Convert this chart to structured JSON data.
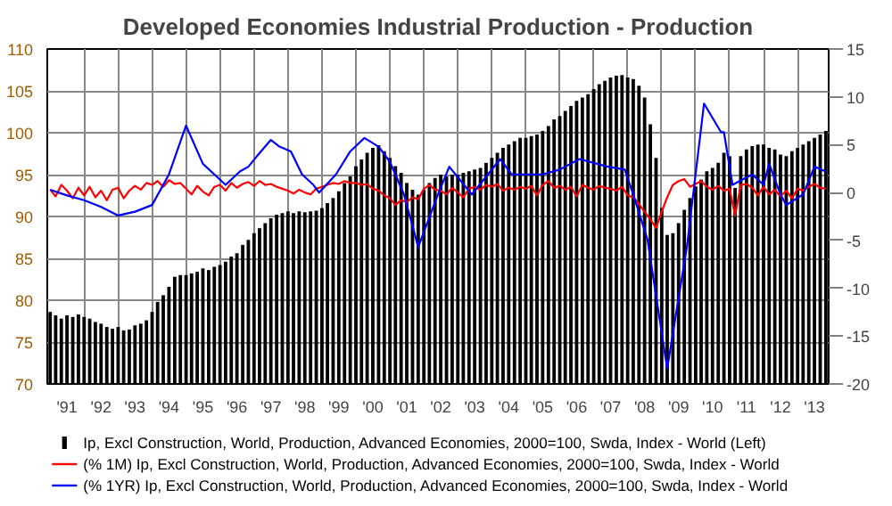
{
  "chart_data": {
    "type": "bar",
    "title": "Developed Economies Industrial Production - Production",
    "x": [
      "1991-01",
      "1991-03",
      "1991-05",
      "1991-07",
      "1991-09",
      "1991-11",
      "1992-01",
      "1992-03",
      "1992-05",
      "1992-07",
      "1992-09",
      "1992-11",
      "1993-01",
      "1993-03",
      "1993-05",
      "1993-07",
      "1993-09",
      "1993-11",
      "1994-01",
      "1994-03",
      "1994-05",
      "1994-07",
      "1994-09",
      "1994-11",
      "1995-01",
      "1995-03",
      "1995-05",
      "1995-07",
      "1995-09",
      "1995-11",
      "1996-01",
      "1996-03",
      "1996-05",
      "1996-07",
      "1996-09",
      "1996-11",
      "1997-01",
      "1997-03",
      "1997-05",
      "1997-07",
      "1997-09",
      "1997-11",
      "1998-01",
      "1998-03",
      "1998-05",
      "1998-07",
      "1998-09",
      "1998-11",
      "1999-01",
      "1999-03",
      "1999-05",
      "1999-07",
      "1999-09",
      "1999-11",
      "2000-01",
      "2000-03",
      "2000-05",
      "2000-07",
      "2000-09",
      "2000-11",
      "2001-01",
      "2001-03",
      "2001-05",
      "2001-07",
      "2001-09",
      "2001-11",
      "2002-01",
      "2002-03",
      "2002-05",
      "2002-07",
      "2002-09",
      "2002-11",
      "2003-01",
      "2003-03",
      "2003-05",
      "2003-07",
      "2003-09",
      "2003-11",
      "2004-01",
      "2004-03",
      "2004-05",
      "2004-07",
      "2004-09",
      "2004-11",
      "2005-01",
      "2005-03",
      "2005-05",
      "2005-07",
      "2005-09",
      "2005-11",
      "2006-01",
      "2006-03",
      "2006-05",
      "2006-07",
      "2006-09",
      "2006-11",
      "2007-01",
      "2007-03",
      "2007-05",
      "2007-07",
      "2007-09",
      "2007-11",
      "2008-01",
      "2008-03",
      "2008-05",
      "2008-07",
      "2008-09",
      "2008-11",
      "2009-01",
      "2009-03",
      "2009-05",
      "2009-07",
      "2009-09",
      "2009-11",
      "2010-01",
      "2010-03",
      "2010-05",
      "2010-07",
      "2010-09",
      "2010-11",
      "2011-01",
      "2011-03",
      "2011-05",
      "2011-07",
      "2011-09",
      "2011-11",
      "2012-01",
      "2012-03",
      "2012-05",
      "2012-07",
      "2012-09",
      "2012-11",
      "2013-01",
      "2013-03",
      "2013-05",
      "2013-07",
      "2013-09",
      "2013-11"
    ],
    "series": [
      {
        "name": "Ip, Excl Construction, World, Production, Advanced Economies, 2000=100, Swda, Index - World  (Left)",
        "color": "#000000",
        "values": [
          78.6,
          78.2,
          77.8,
          78.2,
          78.0,
          78.3,
          78.0,
          77.8,
          77.4,
          77.2,
          76.8,
          76.6,
          76.8,
          76.4,
          76.5,
          77.0,
          77.2,
          77.6,
          78.6,
          79.8,
          80.6,
          81.6,
          82.8,
          83.0,
          83.0,
          83.2,
          83.4,
          83.8,
          83.6,
          84.0,
          84.2,
          84.6,
          85.2,
          85.6,
          86.6,
          87.2,
          88.0,
          88.6,
          89.2,
          89.8,
          90.2,
          90.4,
          90.6,
          90.4,
          90.6,
          90.5,
          90.6,
          90.7,
          91.0,
          91.6,
          92.2,
          93.0,
          94.0,
          94.8,
          96.0,
          96.8,
          97.6,
          98.2,
          98.5,
          97.8,
          97.0,
          96.0,
          95.2,
          94.0,
          93.2,
          92.6,
          93.2,
          94.0,
          94.6,
          95.0,
          94.8,
          95.0,
          95.0,
          95.2,
          95.4,
          95.6,
          95.8,
          96.4,
          97.0,
          97.6,
          98.2,
          98.6,
          99.0,
          99.4,
          99.4,
          99.6,
          99.8,
          100.2,
          100.8,
          101.6,
          102.0,
          102.6,
          103.2,
          103.8,
          104.2,
          104.6,
          105.2,
          105.8,
          106.2,
          106.6,
          106.8,
          106.9,
          106.6,
          106.4,
          105.6,
          104.2,
          101.0,
          97.0,
          91.0,
          87.8,
          88.0,
          89.2,
          90.8,
          92.2,
          93.6,
          94.4,
          95.4,
          95.8,
          96.4,
          97.6,
          97.2,
          93.4,
          97.2,
          98.0,
          98.4,
          98.6,
          98.6,
          98.2,
          98.0,
          97.4,
          97.2,
          97.8,
          98.2,
          98.6,
          99.0,
          99.4,
          99.8,
          100.2
        ]
      },
      {
        "name": "(% 1M) Ip, Excl Construction, World, Production, Advanced Economies, 2000=100, Swda, Index - World",
        "type": "line",
        "axis": "y2",
        "color": "#ff0000",
        "values": [
          0.3,
          -0.4,
          0.8,
          0.2,
          -0.6,
          0.5,
          -0.3,
          0.6,
          -0.5,
          0.2,
          -0.8,
          0.3,
          0.5,
          -0.6,
          0.2,
          0.7,
          0.3,
          1.0,
          0.8,
          1.2,
          0.6,
          1.3,
          0.9,
          1.0,
          0.4,
          -0.2,
          0.7,
          0.1,
          -0.3,
          0.6,
          0.8,
          0.2,
          1.0,
          0.5,
          0.9,
          1.1,
          0.7,
          1.2,
          0.8,
          0.9,
          0.6,
          0.4,
          0.2,
          -0.1,
          0.3,
          0.0,
          -0.2,
          0.4,
          0.6,
          0.8,
          1.0,
          0.9,
          1.2,
          1.0,
          1.0,
          0.8,
          0.9,
          0.4,
          0.2,
          -0.3,
          -0.6,
          -1.3,
          -0.8,
          -1.0,
          -0.5,
          -0.7,
          0.4,
          0.8,
          0.3,
          0.2,
          -0.2,
          0.5,
          0.0,
          -0.5,
          0.4,
          0.6,
          0.3,
          0.8,
          0.6,
          0.9,
          0.2,
          0.5,
          0.3,
          0.6,
          0.4,
          0.7,
          -0.3,
          0.8,
          1.2,
          0.5,
          0.7,
          0.3,
          0.6,
          -0.4,
          0.8,
          0.5,
          0.3,
          0.7,
          0.5,
          0.4,
          0.2,
          0.6,
          -0.3,
          -0.5,
          -1.2,
          -2.0,
          -2.8,
          -3.7,
          -2.0,
          -0.5,
          0.8,
          1.2,
          1.4,
          0.6,
          0.9,
          1.2,
          0.6,
          0.3,
          0.7,
          0.2,
          0.4,
          -2.4,
          0.8,
          0.9,
          0.5,
          -0.3,
          0.6,
          -0.2,
          0.3,
          -0.4,
          0.2,
          -0.6,
          0.4,
          0.2,
          0.6,
          0.9,
          0.5,
          0.4
        ]
      },
      {
        "name": "(% 1YR) Ip, Excl Construction, World, Production, Advanced Economies, 2000=100, Swda, Index - World",
        "type": "line",
        "axis": "y2",
        "color": "#0000ff",
        "x": [
          "1991-01",
          "1991-07",
          "1992-01",
          "1992-07",
          "1993-01",
          "1993-07",
          "1994-01",
          "1994-07",
          "1995-01",
          "1995-07",
          "1995-11",
          "1996-03",
          "1996-08",
          "1996-11",
          "1997-02",
          "1997-07",
          "1997-10",
          "1998-02",
          "1998-06",
          "1998-10",
          "1998-12",
          "1999-06",
          "1999-11",
          "2000-04",
          "2000-09",
          "2001-01",
          "2001-06",
          "2001-11",
          "2002-06",
          "2002-10",
          "2003-06",
          "2004-04",
          "2004-08",
          "2005-07",
          "2006-01",
          "2006-08",
          "2007-06",
          "2007-12",
          "2008-03",
          "2008-08",
          "2009-03",
          "2009-10",
          "2010-04",
          "2010-10",
          "2010-11",
          "2011-02",
          "2011-09",
          "2012-01",
          "2012-03",
          "2012-07",
          "2012-09",
          "2013-03",
          "2013-07",
          "2013-11"
        ],
        "values": [
          0.3,
          -0.3,
          -0.8,
          -1.5,
          -2.4,
          -2.0,
          -1.3,
          1.9,
          7.0,
          3.0,
          1.9,
          0.8,
          2.2,
          2.7,
          3.8,
          5.5,
          4.8,
          4.3,
          1.9,
          0.8,
          0.0,
          1.9,
          4.3,
          5.7,
          4.8,
          3.2,
          -0.2,
          -5.7,
          -0.2,
          2.7,
          -0.2,
          3.5,
          1.9,
          1.9,
          2.4,
          3.5,
          2.7,
          2.4,
          -0.2,
          -4.9,
          -18.4,
          -5.5,
          9.3,
          6.3,
          6.3,
          0.8,
          1.9,
          0.8,
          3.0,
          -0.2,
          -1.3,
          -0.2,
          2.7,
          2.2
        ]
      }
    ],
    "xlim": [
      "1990-12",
      "2013-12"
    ],
    "ylim": [
      70,
      110
    ],
    "y2lim": [
      -20,
      15
    ],
    "xticks": [
      {
        "value": "1991-07",
        "label": "'91"
      },
      {
        "value": "1992-01",
        "label": null
      },
      {
        "value": "1992-07",
        "label": "'92"
      },
      {
        "value": "1993-01",
        "label": null
      },
      {
        "value": "1993-07",
        "label": "'93"
      },
      {
        "value": "1994-01",
        "label": null
      },
      {
        "value": "1994-07",
        "label": "'94"
      },
      {
        "value": "1995-01",
        "label": null
      },
      {
        "value": "1995-07",
        "label": "'95"
      },
      {
        "value": "1996-01",
        "label": null
      },
      {
        "value": "1996-07",
        "label": "'96"
      },
      {
        "value": "1997-01",
        "label": null
      },
      {
        "value": "1997-07",
        "label": "'97"
      },
      {
        "value": "1998-01",
        "label": null
      },
      {
        "value": "1998-07",
        "label": "'98"
      },
      {
        "value": "1999-01",
        "label": null
      },
      {
        "value": "1999-07",
        "label": "'99"
      },
      {
        "value": "2000-01",
        "label": null
      },
      {
        "value": "2000-07",
        "label": "'00"
      },
      {
        "value": "2001-01",
        "label": null
      },
      {
        "value": "2001-07",
        "label": "'01"
      },
      {
        "value": "2002-01",
        "label": null
      },
      {
        "value": "2002-07",
        "label": "'02"
      },
      {
        "value": "2003-01",
        "label": null
      },
      {
        "value": "2003-07",
        "label": "'03"
      },
      {
        "value": "2004-01",
        "label": null
      },
      {
        "value": "2004-07",
        "label": "'04"
      },
      {
        "value": "2005-01",
        "label": null
      },
      {
        "value": "2005-07",
        "label": "'05"
      },
      {
        "value": "2006-01",
        "label": null
      },
      {
        "value": "2006-07",
        "label": "'06"
      },
      {
        "value": "2007-01",
        "label": null
      },
      {
        "value": "2007-07",
        "label": "'07"
      },
      {
        "value": "2008-01",
        "label": null
      },
      {
        "value": "2008-07",
        "label": "'08"
      },
      {
        "value": "2009-01",
        "label": null
      },
      {
        "value": "2009-07",
        "label": "'09"
      },
      {
        "value": "2010-01",
        "label": null
      },
      {
        "value": "2010-07",
        "label": "'10"
      },
      {
        "value": "2011-01",
        "label": null
      },
      {
        "value": "2011-07",
        "label": "'11"
      },
      {
        "value": "2012-01",
        "label": null
      },
      {
        "value": "2012-07",
        "label": "'12"
      },
      {
        "value": "2013-01",
        "label": null
      },
      {
        "value": "2013-07",
        "label": "'13"
      }
    ],
    "yticks": [
      70,
      75,
      80,
      85,
      90,
      95,
      100,
      105,
      110
    ],
    "y2ticks": [
      -20,
      -15,
      -10,
      -5,
      0,
      5,
      10,
      15
    ],
    "grid": true,
    "legend": "bottom",
    "marker": "none",
    "line_style": "solid"
  }
}
